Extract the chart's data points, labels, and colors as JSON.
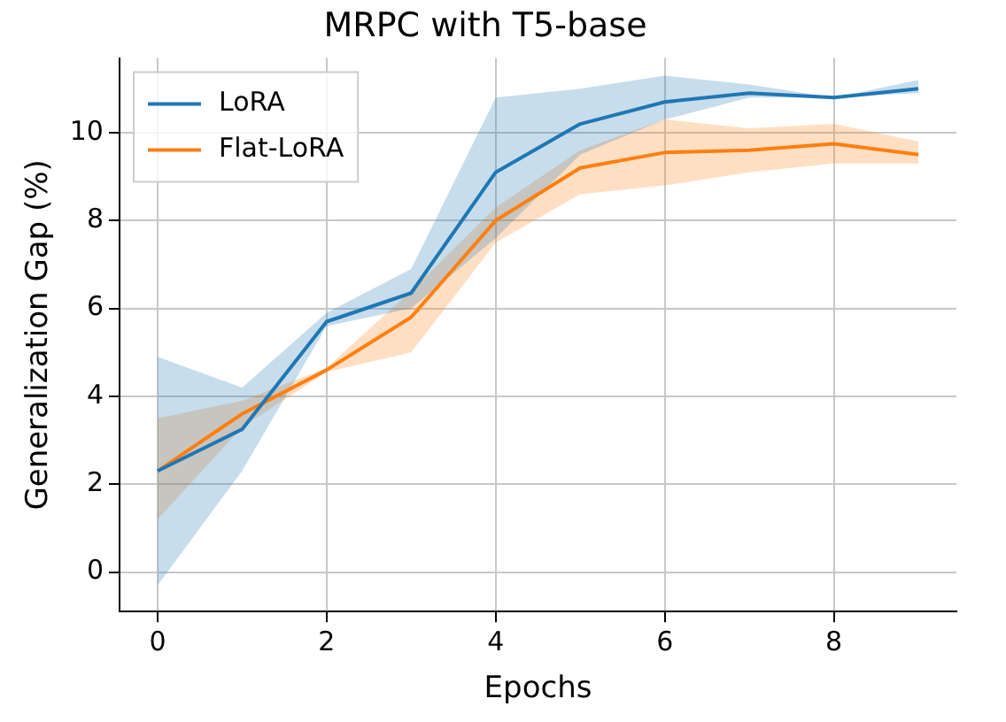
{
  "chart_data": {
    "type": "line",
    "title": "MRPC with T5-base",
    "xlabel": "Epochs",
    "ylabel": "Generalization Gap (%)",
    "x": [
      0,
      1,
      2,
      3,
      4,
      5,
      6,
      7,
      8,
      9
    ],
    "series": [
      {
        "name": "LoRA",
        "color": "#1f77b4",
        "values": [
          2.3,
          3.25,
          5.7,
          6.35,
          9.1,
          10.2,
          10.7,
          10.9,
          10.8,
          11.0
        ],
        "lower": [
          -0.3,
          2.3,
          5.6,
          6.0,
          7.6,
          9.5,
          10.3,
          10.8,
          10.8,
          10.9
        ],
        "upper": [
          4.9,
          4.2,
          5.9,
          6.9,
          10.8,
          11.0,
          11.3,
          11.1,
          10.8,
          11.2
        ]
      },
      {
        "name": "Flat-LoRA",
        "color": "#ff7f0e",
        "values": [
          2.3,
          3.6,
          4.6,
          5.8,
          8.0,
          9.2,
          9.55,
          9.6,
          9.75,
          9.5
        ],
        "lower": [
          1.2,
          3.3,
          4.55,
          5.0,
          7.5,
          8.6,
          8.8,
          9.1,
          9.3,
          9.3
        ],
        "upper": [
          3.5,
          3.9,
          4.65,
          6.4,
          8.3,
          9.6,
          10.3,
          10.1,
          10.2,
          9.8
        ]
      }
    ],
    "xlim": [
      -0.45,
      9.45
    ],
    "xticks": [
      0,
      2,
      4,
      6,
      8
    ],
    "ylim": [
      -0.9,
      11.7
    ],
    "yticks": [
      0,
      2,
      4,
      6,
      8,
      10
    ],
    "grid": true,
    "legend": "top left",
    "marker": "none",
    "line_style": "solid"
  }
}
